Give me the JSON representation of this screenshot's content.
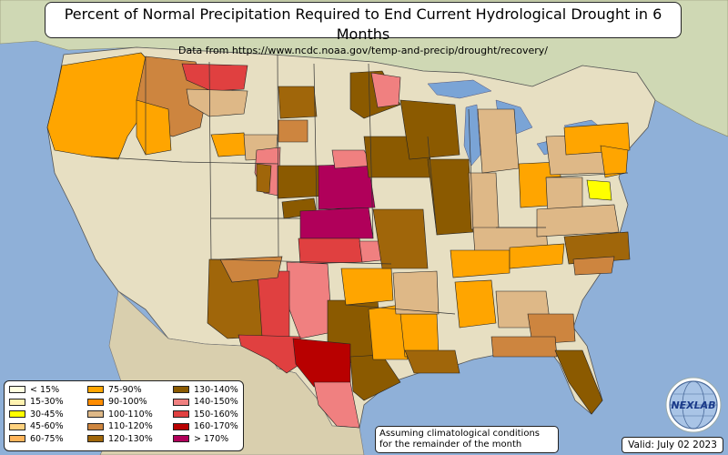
{
  "title": "Percent of Normal Precipitation Required to End Current Hydrological Drought in 6 Months",
  "subtitle": "Data from https://www.ncdc.noaa.gov/temp-and-precip/drought/recovery/",
  "note": {
    "line1": "Assuming climatological conditions",
    "line2": "for the remainder of the month"
  },
  "valid": "Valid: July 02 2023",
  "logo": {
    "icon": "nexlab-globe-logo",
    "text": "NEXLAB"
  },
  "colors": {
    "ocean": "#8fb0d8",
    "land": "#e7dfc2",
    "land_north": "#c9d3a0",
    "canada": "#cfd8b4",
    "lakes": "#7aa4d6"
  },
  "legend": [
    {
      "label": "< 15%",
      "color": "#ffffe0"
    },
    {
      "label": "15-30%",
      "color": "#fff2b0"
    },
    {
      "label": "30-45%",
      "color": "#ffff00"
    },
    {
      "label": "45-60%",
      "color": "#ffd27f"
    },
    {
      "label": "60-75%",
      "color": "#ffb45a"
    },
    {
      "label": "75-90%",
      "color": "#ffa500"
    },
    {
      "label": "90-100%",
      "color": "#ff8c00"
    },
    {
      "label": "100-110%",
      "color": "#deb887"
    },
    {
      "label": "110-120%",
      "color": "#cd853f"
    },
    {
      "label": "120-130%",
      "color": "#a0660a"
    },
    {
      "label": "130-140%",
      "color": "#8b5a00"
    },
    {
      "label": "140-150%",
      "color": "#f08080"
    },
    {
      "label": "150-160%",
      "color": "#e04040"
    },
    {
      "label": "160-170%",
      "color": "#b80000"
    },
    {
      "label": "> 170%",
      "color": "#b0005a"
    }
  ],
  "regions": [
    {
      "id": "pacific-northwest",
      "color": "#ffa500",
      "points": [
        [
          68,
          72
        ],
        [
          155,
          58
        ],
        [
          175,
          80
        ],
        [
          160,
          120
        ],
        [
          140,
          150
        ],
        [
          130,
          175
        ],
        [
          100,
          172
        ],
        [
          60,
          165
        ],
        [
          52,
          140
        ],
        [
          62,
          100
        ]
      ]
    },
    {
      "id": "idaho-montana-west",
      "color": "#cd853f",
      "points": [
        [
          160,
          62
        ],
        [
          215,
          68
        ],
        [
          228,
          100
        ],
        [
          220,
          140
        ],
        [
          190,
          150
        ],
        [
          160,
          140
        ],
        [
          150,
          110
        ]
      ]
    },
    {
      "id": "idaho-orange",
      "color": "#ffa500",
      "points": [
        [
          150,
          110
        ],
        [
          185,
          120
        ],
        [
          188,
          165
        ],
        [
          160,
          170
        ],
        [
          150,
          150
        ]
      ]
    },
    {
      "id": "montana-north-red",
      "color": "#e04040",
      "points": [
        [
          200,
          70
        ],
        [
          272,
          72
        ],
        [
          268,
          98
        ],
        [
          232,
          100
        ],
        [
          205,
          88
        ]
      ]
    },
    {
      "id": "montana-central",
      "color": "#deb887",
      "points": [
        [
          205,
          98
        ],
        [
          272,
          100
        ],
        [
          268,
          125
        ],
        [
          230,
          128
        ],
        [
          208,
          115
        ]
      ]
    },
    {
      "id": "wyoming-west",
      "color": "#ffa500",
      "points": [
        [
          232,
          148
        ],
        [
          268,
          146
        ],
        [
          272,
          170
        ],
        [
          240,
          172
        ]
      ]
    },
    {
      "id": "wyoming-east",
      "color": "#deb887",
      "points": [
        [
          268,
          148
        ],
        [
          305,
          148
        ],
        [
          303,
          175
        ],
        [
          270,
          176
        ]
      ]
    },
    {
      "id": "colorado-east-red",
      "color": "#f08080",
      "points": [
        [
          282,
          165
        ],
        [
          308,
          162
        ],
        [
          306,
          215
        ],
        [
          290,
          212
        ],
        [
          280,
          190
        ]
      ]
    },
    {
      "id": "front-range",
      "color": "#a0660a",
      "points": [
        [
          282,
          180
        ],
        [
          298,
          182
        ],
        [
          296,
          212
        ],
        [
          282,
          210
        ]
      ]
    },
    {
      "id": "north-dakota-east",
      "color": "#a0660a",
      "points": [
        [
          306,
          95
        ],
        [
          345,
          95
        ],
        [
          348,
          128
        ],
        [
          308,
          130
        ]
      ]
    },
    {
      "id": "south-dakota-west",
      "color": "#cd853f",
      "points": [
        [
          306,
          132
        ],
        [
          338,
          132
        ],
        [
          338,
          156
        ],
        [
          306,
          156
        ]
      ]
    },
    {
      "id": "nebraska-west",
      "color": "#8b5a00",
      "points": [
        [
          305,
          182
        ],
        [
          360,
          182
        ],
        [
          362,
          215
        ],
        [
          305,
          218
        ]
      ]
    },
    {
      "id": "kansas-west",
      "color": "#8b5a00",
      "points": [
        [
          310,
          222
        ],
        [
          345,
          218
        ],
        [
          348,
          235
        ],
        [
          312,
          240
        ]
      ]
    },
    {
      "id": "kansas-east-magenta",
      "color": "#b0005a",
      "points": [
        [
          330,
          232
        ],
        [
          405,
          228
        ],
        [
          410,
          262
        ],
        [
          330,
          262
        ]
      ]
    },
    {
      "id": "nebraska-east-magenta",
      "color": "#b0005a",
      "points": [
        [
          350,
          182
        ],
        [
          405,
          180
        ],
        [
          412,
          228
        ],
        [
          350,
          230
        ]
      ]
    },
    {
      "id": "iowa-west-red",
      "color": "#f08080",
      "points": [
        [
          365,
          165
        ],
        [
          400,
          165
        ],
        [
          410,
          182
        ],
        [
          368,
          185
        ]
      ]
    },
    {
      "id": "oklahoma-red",
      "color": "#e04040",
      "points": [
        [
          328,
          262
        ],
        [
          395,
          262
        ],
        [
          398,
          288
        ],
        [
          330,
          290
        ]
      ]
    },
    {
      "id": "oklahoma-east-pink",
      "color": "#f08080",
      "points": [
        [
          395,
          265
        ],
        [
          425,
          265
        ],
        [
          428,
          285
        ],
        [
          398,
          288
        ]
      ]
    },
    {
      "id": "texas-panhandle-pink",
      "color": "#f08080",
      "points": [
        [
          315,
          288
        ],
        [
          360,
          290
        ],
        [
          365,
          365
        ],
        [
          330,
          372
        ],
        [
          318,
          340
        ]
      ]
    },
    {
      "id": "new-mexico-red",
      "color": "#e04040",
      "points": [
        [
          280,
          298
        ],
        [
          318,
          298
        ],
        [
          318,
          370
        ],
        [
          285,
          372
        ]
      ]
    },
    {
      "id": "new-mexico-brown",
      "color": "#a0660a",
      "points": [
        [
          230,
          285
        ],
        [
          282,
          285
        ],
        [
          288,
          370
        ],
        [
          250,
          372
        ],
        [
          228,
          355
        ]
      ]
    },
    {
      "id": "four-corners",
      "color": "#cd853f",
      "points": [
        [
          242,
          285
        ],
        [
          310,
          282
        ],
        [
          305,
          305
        ],
        [
          255,
          310
        ]
      ]
    },
    {
      "id": "texas-central-brown",
      "color": "#8b5a00",
      "points": [
        [
          360,
          330
        ],
        [
          415,
          330
        ],
        [
          420,
          390
        ],
        [
          380,
          400
        ],
        [
          360,
          380
        ]
      ]
    },
    {
      "id": "texas-west-red",
      "color": "#e04040",
      "points": [
        [
          262,
          368
        ],
        [
          330,
          370
        ],
        [
          330,
          400
        ],
        [
          315,
          410
        ],
        [
          295,
          395
        ],
        [
          265,
          380
        ]
      ]
    },
    {
      "id": "texas-south-darkred",
      "color": "#b80000",
      "points": [
        [
          322,
          372
        ],
        [
          385,
          378
        ],
        [
          385,
          420
        ],
        [
          345,
          425
        ],
        [
          325,
          400
        ]
      ]
    },
    {
      "id": "texas-south-pink",
      "color": "#f08080",
      "points": [
        [
          345,
          420
        ],
        [
          385,
          420
        ],
        [
          395,
          470
        ],
        [
          370,
          468
        ],
        [
          350,
          445
        ]
      ]
    },
    {
      "id": "texas-gulf-brown",
      "color": "#8b5a00",
      "points": [
        [
          385,
          392
        ],
        [
          420,
          390
        ],
        [
          440,
          420
        ],
        [
          400,
          440
        ],
        [
          388,
          430
        ]
      ]
    },
    {
      "id": "texas-east-orange",
      "color": "#ffa500",
      "points": [
        [
          405,
          340
        ],
        [
          440,
          335
        ],
        [
          448,
          395
        ],
        [
          410,
          395
        ]
      ]
    },
    {
      "id": "arkansas-orange",
      "color": "#ffa500",
      "points": [
        [
          375,
          295
        ],
        [
          430,
          295
        ],
        [
          432,
          330
        ],
        [
          380,
          335
        ]
      ]
    },
    {
      "id": "louisiana",
      "color": "#ffa500",
      "points": [
        [
          440,
          345
        ],
        [
          480,
          345
        ],
        [
          482,
          390
        ],
        [
          445,
          392
        ]
      ]
    },
    {
      "id": "louisiana-gulf",
      "color": "#a0660a",
      "points": [
        [
          445,
          385
        ],
        [
          500,
          385
        ],
        [
          505,
          410
        ],
        [
          455,
          410
        ]
      ]
    },
    {
      "id": "mississippi-tan",
      "color": "#deb887",
      "points": [
        [
          432,
          300
        ],
        [
          480,
          298
        ],
        [
          482,
          345
        ],
        [
          435,
          345
        ]
      ]
    },
    {
      "id": "missouri-brown",
      "color": "#a0660a",
      "points": [
        [
          410,
          230
        ],
        [
          465,
          230
        ],
        [
          470,
          295
        ],
        [
          420,
          295
        ]
      ]
    },
    {
      "id": "iowa-brown",
      "color": "#8b5a00",
      "points": [
        [
          400,
          150
        ],
        [
          470,
          150
        ],
        [
          475,
          195
        ],
        [
          405,
          195
        ]
      ]
    },
    {
      "id": "minnesota-brown",
      "color": "#8b5a00",
      "points": [
        [
          385,
          80
        ],
        [
          420,
          78
        ],
        [
          440,
          115
        ],
        [
          400,
          130
        ],
        [
          385,
          120
        ]
      ]
    },
    {
      "id": "minnesota-pink",
      "color": "#f08080",
      "points": [
        [
          408,
          80
        ],
        [
          440,
          85
        ],
        [
          438,
          115
        ],
        [
          415,
          118
        ]
      ]
    },
    {
      "id": "wisconsin-brown",
      "color": "#8b5a00",
      "points": [
        [
          440,
          110
        ],
        [
          500,
          115
        ],
        [
          505,
          170
        ],
        [
          450,
          175
        ]
      ]
    },
    {
      "id": "illinois-brown",
      "color": "#8b5a00",
      "points": [
        [
          470,
          175
        ],
        [
          515,
          175
        ],
        [
          520,
          255
        ],
        [
          480,
          258
        ]
      ]
    },
    {
      "id": "indiana-tan",
      "color": "#deb887",
      "points": [
        [
          515,
          190
        ],
        [
          545,
          190
        ],
        [
          548,
          250
        ],
        [
          518,
          252
        ]
      ]
    },
    {
      "id": "kentucky-tan",
      "color": "#deb887",
      "points": [
        [
          520,
          250
        ],
        [
          600,
          250
        ],
        [
          602,
          275
        ],
        [
          522,
          280
        ]
      ]
    },
    {
      "id": "tennessee-orange",
      "color": "#ffa500",
      "points": [
        [
          495,
          275
        ],
        [
          560,
          275
        ],
        [
          560,
          300
        ],
        [
          498,
          305
        ]
      ]
    },
    {
      "id": "tennessee-east",
      "color": "#ffa500",
      "points": [
        [
          560,
          272
        ],
        [
          620,
          268
        ],
        [
          618,
          290
        ],
        [
          560,
          295
        ]
      ]
    },
    {
      "id": "alabama-orange",
      "color": "#ffa500",
      "points": [
        [
          500,
          310
        ],
        [
          540,
          308
        ],
        [
          545,
          355
        ],
        [
          505,
          360
        ]
      ]
    },
    {
      "id": "georgia-tan",
      "color": "#deb887",
      "points": [
        [
          545,
          320
        ],
        [
          600,
          320
        ],
        [
          605,
          360
        ],
        [
          548,
          360
        ]
      ]
    },
    {
      "id": "michigan-tan",
      "color": "#deb887",
      "points": [
        [
          525,
          120
        ],
        [
          565,
          120
        ],
        [
          570,
          185
        ],
        [
          530,
          190
        ]
      ]
    },
    {
      "id": "ohio-orange",
      "color": "#ffa500",
      "points": [
        [
          570,
          180
        ],
        [
          615,
          178
        ],
        [
          618,
          225
        ],
        [
          572,
          228
        ]
      ]
    },
    {
      "id": "pennsylvania-tan",
      "color": "#deb887",
      "points": [
        [
          600,
          150
        ],
        [
          665,
          148
        ],
        [
          668,
          190
        ],
        [
          605,
          192
        ]
      ]
    },
    {
      "id": "new-york-orange",
      "color": "#ffa500",
      "points": [
        [
          620,
          140
        ],
        [
          690,
          135
        ],
        [
          692,
          165
        ],
        [
          622,
          170
        ]
      ]
    },
    {
      "id": "west-virginia-tan",
      "color": "#deb887",
      "points": [
        [
          600,
          195
        ],
        [
          640,
          195
        ],
        [
          640,
          235
        ],
        [
          602,
          238
        ]
      ]
    },
    {
      "id": "virginia-tan",
      "color": "#deb887",
      "points": [
        [
          590,
          230
        ],
        [
          675,
          225
        ],
        [
          680,
          255
        ],
        [
          590,
          260
        ]
      ]
    },
    {
      "id": "maryland-yellow",
      "color": "#ffff00",
      "points": [
        [
          645,
          198
        ],
        [
          670,
          200
        ],
        [
          672,
          220
        ],
        [
          648,
          218
        ]
      ]
    },
    {
      "id": "north-carolina",
      "color": "#a0660a",
      "points": [
        [
          620,
          260
        ],
        [
          690,
          255
        ],
        [
          692,
          285
        ],
        [
          625,
          290
        ]
      ]
    },
    {
      "id": "carolina-coast",
      "color": "#cd853f",
      "points": [
        [
          630,
          285
        ],
        [
          675,
          282
        ],
        [
          672,
          300
        ],
        [
          632,
          302
        ]
      ]
    },
    {
      "id": "georgia-coast",
      "color": "#cd853f",
      "points": [
        [
          580,
          345
        ],
        [
          630,
          345
        ],
        [
          632,
          375
        ],
        [
          585,
          378
        ]
      ]
    },
    {
      "id": "florida-panhandle",
      "color": "#cd853f",
      "points": [
        [
          540,
          370
        ],
        [
          610,
          370
        ],
        [
          612,
          392
        ],
        [
          542,
          392
        ]
      ]
    },
    {
      "id": "florida-peninsula",
      "color": "#8b5a00",
      "points": [
        [
          610,
          385
        ],
        [
          640,
          385
        ],
        [
          662,
          440
        ],
        [
          650,
          455
        ],
        [
          625,
          420
        ]
      ]
    },
    {
      "id": "virginia-coast-orange",
      "color": "#ffa500",
      "points": [
        [
          660,
          160
        ],
        [
          690,
          165
        ],
        [
          688,
          190
        ],
        [
          665,
          195
        ]
      ]
    }
  ]
}
